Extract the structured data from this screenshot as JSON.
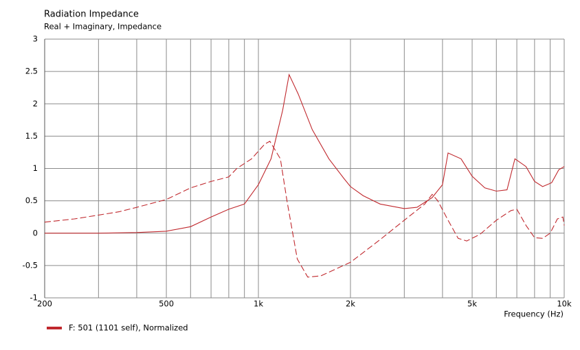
{
  "chart_data": {
    "type": "line",
    "title": "Radiation Impedance",
    "subtitle": "Real + Imaginary, Impedance",
    "x_label": "Frequency  (Hz)",
    "log_x": true,
    "grid": true,
    "xlim": [
      200,
      10000
    ],
    "xticks": [
      200,
      500,
      {
        "value": 1000,
        "label": "1k"
      },
      {
        "value": 2000,
        "label": "2k"
      },
      {
        "value": 5000,
        "label": "5k"
      },
      {
        "value": 10000,
        "label": "10k"
      }
    ],
    "xminor": [
      300,
      400,
      600,
      700,
      800,
      900,
      3000,
      4000,
      6000,
      7000,
      8000,
      9000
    ],
    "ylim": [
      -1,
      3
    ],
    "yticks": [
      3,
      2.5,
      2,
      1.5,
      1,
      0.5,
      0,
      -0.5,
      -1
    ],
    "series": [
      {
        "name": "F: 501 (1101 self), Normalized",
        "color": "#c0282d",
        "dash": false,
        "x": [
          200,
          300,
          400,
          500,
          600,
          700,
          800,
          900,
          1000,
          1100,
          1200,
          1260,
          1350,
          1500,
          1700,
          1900,
          2000,
          2200,
          2500,
          3000,
          3300,
          3700,
          4000,
          4170,
          4600,
          5000,
          5500,
          6000,
          6500,
          6900,
          7500,
          8000,
          8500,
          9100,
          9600,
          10000
        ],
        "values": [
          0,
          0,
          0.01,
          0.03,
          0.1,
          0.25,
          0.37,
          0.45,
          0.75,
          1.15,
          1.9,
          2.45,
          2.15,
          1.6,
          1.15,
          0.85,
          0.72,
          0.58,
          0.45,
          0.38,
          0.4,
          0.55,
          0.75,
          1.24,
          1.15,
          0.88,
          0.7,
          0.65,
          0.67,
          1.15,
          1.03,
          0.8,
          0.72,
          0.78,
          0.98,
          1.03
        ]
      },
      {
        "color": "#c0282d",
        "dash": true,
        "x": [
          200,
          250,
          300,
          350,
          400,
          500,
          600,
          700,
          800,
          850,
          950,
          1050,
          1090,
          1180,
          1240,
          1340,
          1450,
          1600,
          2000,
          2500,
          3000,
          3500,
          3700,
          3860,
          4170,
          4500,
          4800,
          5300,
          6000,
          6700,
          7000,
          7500,
          8000,
          8500,
          9000,
          9500,
          9900,
          10000
        ],
        "values": [
          0.17,
          0.22,
          0.28,
          0.33,
          0.4,
          0.52,
          0.7,
          0.8,
          0.87,
          1.0,
          1.15,
          1.38,
          1.42,
          1.15,
          0.5,
          -0.4,
          -0.68,
          -0.66,
          -0.45,
          -0.1,
          0.2,
          0.45,
          0.6,
          0.5,
          0.2,
          -0.08,
          -0.12,
          -0.02,
          0.2,
          0.35,
          0.37,
          0.12,
          -0.07,
          -0.08,
          0,
          0.22,
          0.25,
          0.12
        ]
      }
    ]
  }
}
